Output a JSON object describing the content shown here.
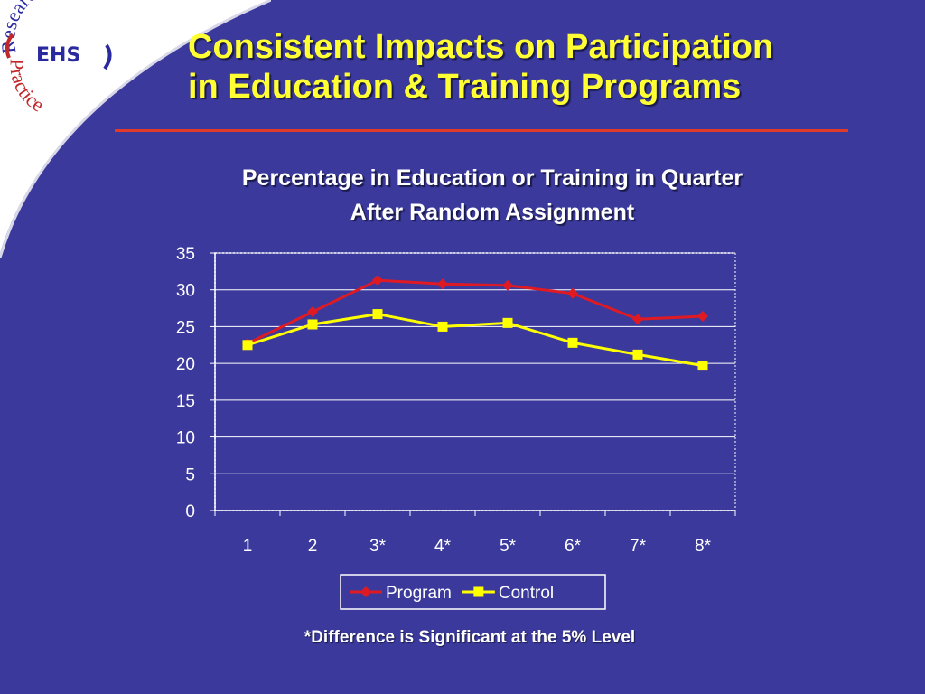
{
  "logo": {
    "top_text": "Research",
    "middle_text": "EHS",
    "bottom_text": "Practice"
  },
  "slide": {
    "title_line1": "Consistent Impacts on Participation",
    "title_line2": "in Education & Training Programs",
    "footnote": "*Difference is Significant at the 5% Level"
  },
  "colors": {
    "background": "#3b3a9c",
    "title": "#ffff33",
    "rule": "#e03a2a",
    "program": "#e01a22",
    "control": "#ffff00"
  },
  "chart_data": {
    "type": "line",
    "title_line1": "Percentage in Education or Training in Quarter",
    "title_line2": "After Random Assignment",
    "categories": [
      "1",
      "2",
      "3*",
      "4*",
      "5*",
      "6*",
      "7*",
      "8*"
    ],
    "series": [
      {
        "name": "Program",
        "color": "#e01a22",
        "marker": "diamond",
        "values": [
          22.7,
          27.0,
          31.3,
          30.8,
          30.6,
          29.5,
          26.0,
          26.4
        ]
      },
      {
        "name": "Control",
        "color": "#ffff00",
        "marker": "square",
        "values": [
          22.5,
          25.3,
          26.7,
          25.0,
          25.5,
          22.8,
          21.2,
          19.7
        ]
      }
    ],
    "yticks": [
      0,
      5,
      10,
      15,
      20,
      25,
      30,
      35
    ],
    "ylim": [
      0,
      35
    ],
    "grid": "horizontal",
    "legend_position": "bottom"
  }
}
